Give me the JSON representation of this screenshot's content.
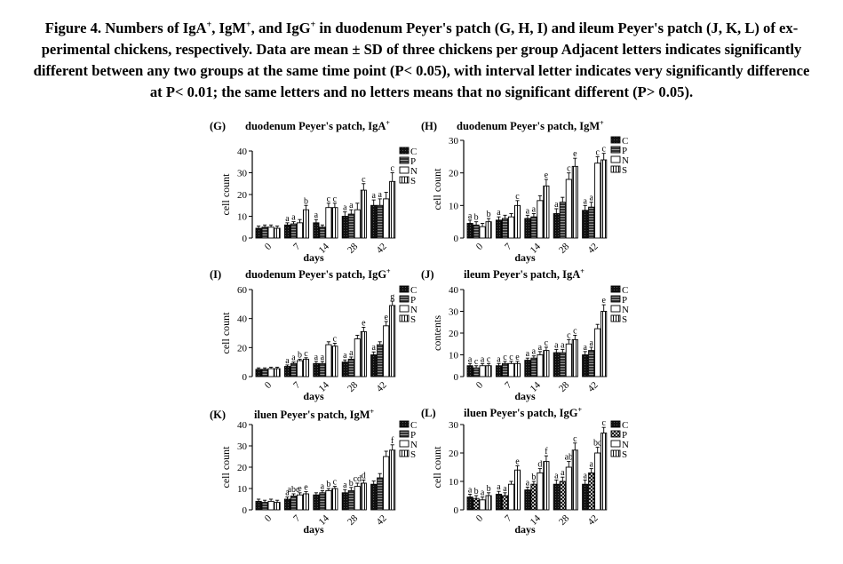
{
  "caption": {
    "line1_a": "Figure 4. Numbers of IgA",
    "line1_b": ", IgM",
    "line1_c": ", and IgG",
    "line1_d": " in duodenum Peyer's patch (G, H, I) and ileum Peyer's patch (J, K, L) of ex-",
    "sup": "+",
    "line2": "perimental chickens, respectively. Data are mean ± SD of three chickens per group Adjacent letters indicates significantly",
    "line3": "different between any two groups at the same time point (P< 0.05), with interval letter indicates very significantly difference",
    "line4": "at P< 0.01; the same letters and no letters means that no significant different (P> 0.05)."
  },
  "chart_data": [
    {
      "id": "G",
      "type": "bar",
      "label": "(G)",
      "title": "duodenum Peyer's patch, IgA",
      "title_sup": "+",
      "ylabel": "cell count",
      "xlabel": "days",
      "ylim": [
        0,
        40
      ],
      "yticks": [
        0,
        10,
        20,
        30,
        40
      ],
      "categories": [
        "0",
        "7",
        "14",
        "28",
        "42"
      ],
      "legend": [
        "C",
        "P",
        "N",
        "S"
      ],
      "series": [
        {
          "name": "C",
          "values": [
            4.5,
            6,
            7,
            10,
            15
          ],
          "errors": [
            1,
            1,
            1.5,
            2,
            2.5
          ]
        },
        {
          "name": "P",
          "values": [
            5,
            6.5,
            5,
            11,
            15
          ],
          "errors": [
            1,
            1,
            1,
            2,
            3
          ]
        },
        {
          "name": "N",
          "values": [
            5,
            7,
            14,
            13,
            18
          ],
          "errors": [
            1,
            1.5,
            2,
            3,
            3
          ]
        },
        {
          "name": "S",
          "values": [
            4.5,
            13,
            14,
            22,
            26
          ],
          "errors": [
            1,
            2,
            2,
            3,
            4
          ]
        }
      ],
      "sig_letters": [
        [
          "",
          "",
          "",
          ""
        ],
        [
          "a",
          "a",
          "",
          "b"
        ],
        [
          "a",
          "",
          "c",
          "c"
        ],
        [
          "a",
          "a",
          "",
          "c"
        ],
        [
          "a",
          "a",
          "",
          "c"
        ]
      ]
    },
    {
      "id": "H",
      "type": "bar",
      "label": "(H)",
      "title": "duodenum Peyer's patch, IgM",
      "title_sup": "+",
      "ylabel": "cell count",
      "xlabel": "days",
      "ylim": [
        0,
        30
      ],
      "yticks": [
        0,
        10,
        20,
        30
      ],
      "categories": [
        "0",
        "7",
        "14",
        "28",
        "42"
      ],
      "legend": [
        "C",
        "P",
        "N",
        "S"
      ],
      "series": [
        {
          "name": "C",
          "values": [
            4.5,
            5.5,
            6,
            7.5,
            8.5
          ],
          "errors": [
            1,
            1,
            1,
            1.5,
            1.5
          ]
        },
        {
          "name": "P",
          "values": [
            4,
            6,
            6.5,
            11,
            9.5
          ],
          "errors": [
            1,
            1,
            1,
            1.5,
            1.5
          ]
        },
        {
          "name": "N",
          "values": [
            3.5,
            6.5,
            11.5,
            18,
            23
          ],
          "errors": [
            1,
            1,
            1.5,
            2,
            2
          ]
        },
        {
          "name": "S",
          "values": [
            5,
            10,
            16,
            22,
            24
          ],
          "errors": [
            1,
            1.5,
            2,
            2.5,
            2
          ]
        }
      ],
      "sig_letters": [
        [
          "a",
          "b",
          "",
          "b"
        ],
        [
          "a",
          "",
          "",
          "c"
        ],
        [
          "a",
          "a",
          "",
          "e"
        ],
        [
          "a",
          "",
          "c",
          "e"
        ],
        [
          "a",
          "a",
          "c",
          "c"
        ]
      ]
    },
    {
      "id": "I",
      "type": "bar",
      "label": "(I)",
      "title": "duodenum Peyer's patch, IgG",
      "title_sup": "+",
      "ylabel": "cell count",
      "xlabel": "days",
      "ylim": [
        0,
        60
      ],
      "yticks": [
        0,
        20,
        40,
        60
      ],
      "categories": [
        "0",
        "7",
        "14",
        "28",
        "42"
      ],
      "legend": [
        "C",
        "P",
        "N",
        "S"
      ],
      "series": [
        {
          "name": "C",
          "values": [
            5,
            7,
            9,
            10,
            15
          ],
          "errors": [
            1,
            1,
            1.5,
            1.5,
            2
          ]
        },
        {
          "name": "P",
          "values": [
            5,
            9,
            9,
            12,
            22
          ],
          "errors": [
            1,
            1,
            1.5,
            1.5,
            2
          ]
        },
        {
          "name": "N",
          "values": [
            5.5,
            11,
            22,
            26,
            35
          ],
          "errors": [
            1,
            1,
            2,
            2.5,
            3
          ]
        },
        {
          "name": "S",
          "values": [
            5.5,
            12,
            21,
            31,
            49
          ],
          "errors": [
            1,
            1,
            2,
            3,
            3
          ]
        }
      ],
      "sig_letters": [
        [
          "",
          "",
          "",
          ""
        ],
        [
          "a",
          "a",
          "b",
          "c"
        ],
        [
          "a",
          "a",
          "",
          "c"
        ],
        [
          "a",
          "a",
          "",
          "e"
        ],
        [
          "a",
          "",
          "e",
          "g"
        ]
      ]
    },
    {
      "id": "J",
      "type": "bar",
      "label": "(J)",
      "title": "ileum Peyer's patch, IgA",
      "title_sup": "+",
      "ylabel": "contents",
      "xlabel": "days",
      "ylim": [
        0,
        40
      ],
      "yticks": [
        0,
        10,
        20,
        30,
        40
      ],
      "categories": [
        "0",
        "7",
        "14",
        "28",
        "42"
      ],
      "legend": [
        "C",
        "P",
        "N",
        "S"
      ],
      "series": [
        {
          "name": "C",
          "values": [
            5,
            5,
            7.5,
            11,
            10
          ],
          "errors": [
            1,
            1,
            1,
            1.5,
            1.5
          ]
        },
        {
          "name": "P",
          "values": [
            4,
            6,
            8.5,
            11,
            12
          ],
          "errors": [
            1,
            1,
            1,
            1.5,
            1.5
          ]
        },
        {
          "name": "N",
          "values": [
            5,
            6,
            10,
            15,
            22
          ],
          "errors": [
            1,
            1,
            1.5,
            2,
            2
          ]
        },
        {
          "name": "S",
          "values": [
            5,
            6,
            12,
            17,
            30
          ],
          "errors": [
            1,
            1,
            1.5,
            2,
            3
          ]
        }
      ],
      "sig_letters": [
        [
          "a",
          "c",
          "a",
          "c"
        ],
        [
          "a",
          "c",
          "c",
          "e"
        ],
        [
          "a",
          "a",
          "a",
          "c"
        ],
        [
          "a",
          "a",
          "c",
          "c"
        ],
        [
          "a",
          "a",
          "",
          "e"
        ]
      ]
    },
    {
      "id": "K",
      "type": "bar",
      "label": "(K)",
      "title": "iluen Peyer's patch, IgM",
      "title_sup": "+",
      "ylabel": "cell count",
      "xlabel": "days",
      "ylim": [
        0,
        40
      ],
      "yticks": [
        0,
        10,
        20,
        30,
        40
      ],
      "categories": [
        "0",
        "7",
        "14",
        "28",
        "42"
      ],
      "legend": [
        "C",
        "P",
        "N",
        "S"
      ],
      "series": [
        {
          "name": "C",
          "values": [
            4,
            5,
            7,
            8,
            12
          ],
          "errors": [
            1,
            1,
            1,
            1.5,
            1.5
          ]
        },
        {
          "name": "P",
          "values": [
            3.5,
            6.5,
            8,
            9,
            15
          ],
          "errors": [
            1,
            1,
            1,
            1.5,
            2
          ]
        },
        {
          "name": "N",
          "values": [
            4,
            7,
            9,
            11,
            25
          ],
          "errors": [
            1,
            1,
            1,
            1.5,
            2.5
          ]
        },
        {
          "name": "S",
          "values": [
            3.5,
            7.5,
            10,
            12.5,
            28
          ],
          "errors": [
            1,
            1,
            1,
            1.5,
            2.5
          ]
        }
      ],
      "sig_letters": [
        [
          "",
          "",
          "",
          ""
        ],
        [
          "a",
          "abc",
          "e",
          "e"
        ],
        [
          "",
          "a",
          "b",
          "c"
        ],
        [
          "a",
          "b",
          "cd",
          "d"
        ],
        [
          "",
          "",
          "",
          "f"
        ]
      ]
    },
    {
      "id": "L",
      "type": "bar",
      "label": "(L)",
      "title": "iluen Peyer's patch, IgG",
      "title_sup": "+",
      "ylabel": "cell count",
      "xlabel": "days",
      "ylim": [
        0,
        30
      ],
      "yticks": [
        0,
        10,
        20,
        30
      ],
      "categories": [
        "0",
        "7",
        "14",
        "28",
        "42"
      ],
      "legend": [
        "C",
        "P",
        "N",
        "S"
      ],
      "series": [
        {
          "name": "C",
          "values": [
            4.5,
            5.5,
            7,
            9,
            9
          ],
          "errors": [
            1,
            1,
            1,
            1.5,
            1.5
          ]
        },
        {
          "name": "P",
          "values": [
            4,
            5,
            9,
            10,
            13
          ],
          "errors": [
            1,
            1,
            1,
            1.5,
            1.5
          ]
        },
        {
          "name": "N",
          "values": [
            3.5,
            9,
            13,
            15,
            20
          ],
          "errors": [
            1,
            1,
            1.5,
            2,
            2
          ]
        },
        {
          "name": "S",
          "values": [
            5,
            14,
            17,
            21,
            27
          ],
          "errors": [
            1,
            1.5,
            2,
            2.5,
            2
          ]
        }
      ],
      "sig_letters": [
        [
          "a",
          "b",
          "a",
          "b"
        ],
        [
          "a",
          "a",
          "",
          "e"
        ],
        [
          "a",
          "b",
          "d",
          "f"
        ],
        [
          "a",
          "a",
          "ab",
          "c"
        ],
        [
          "a",
          "a",
          "bc",
          "c"
        ]
      ]
    }
  ]
}
